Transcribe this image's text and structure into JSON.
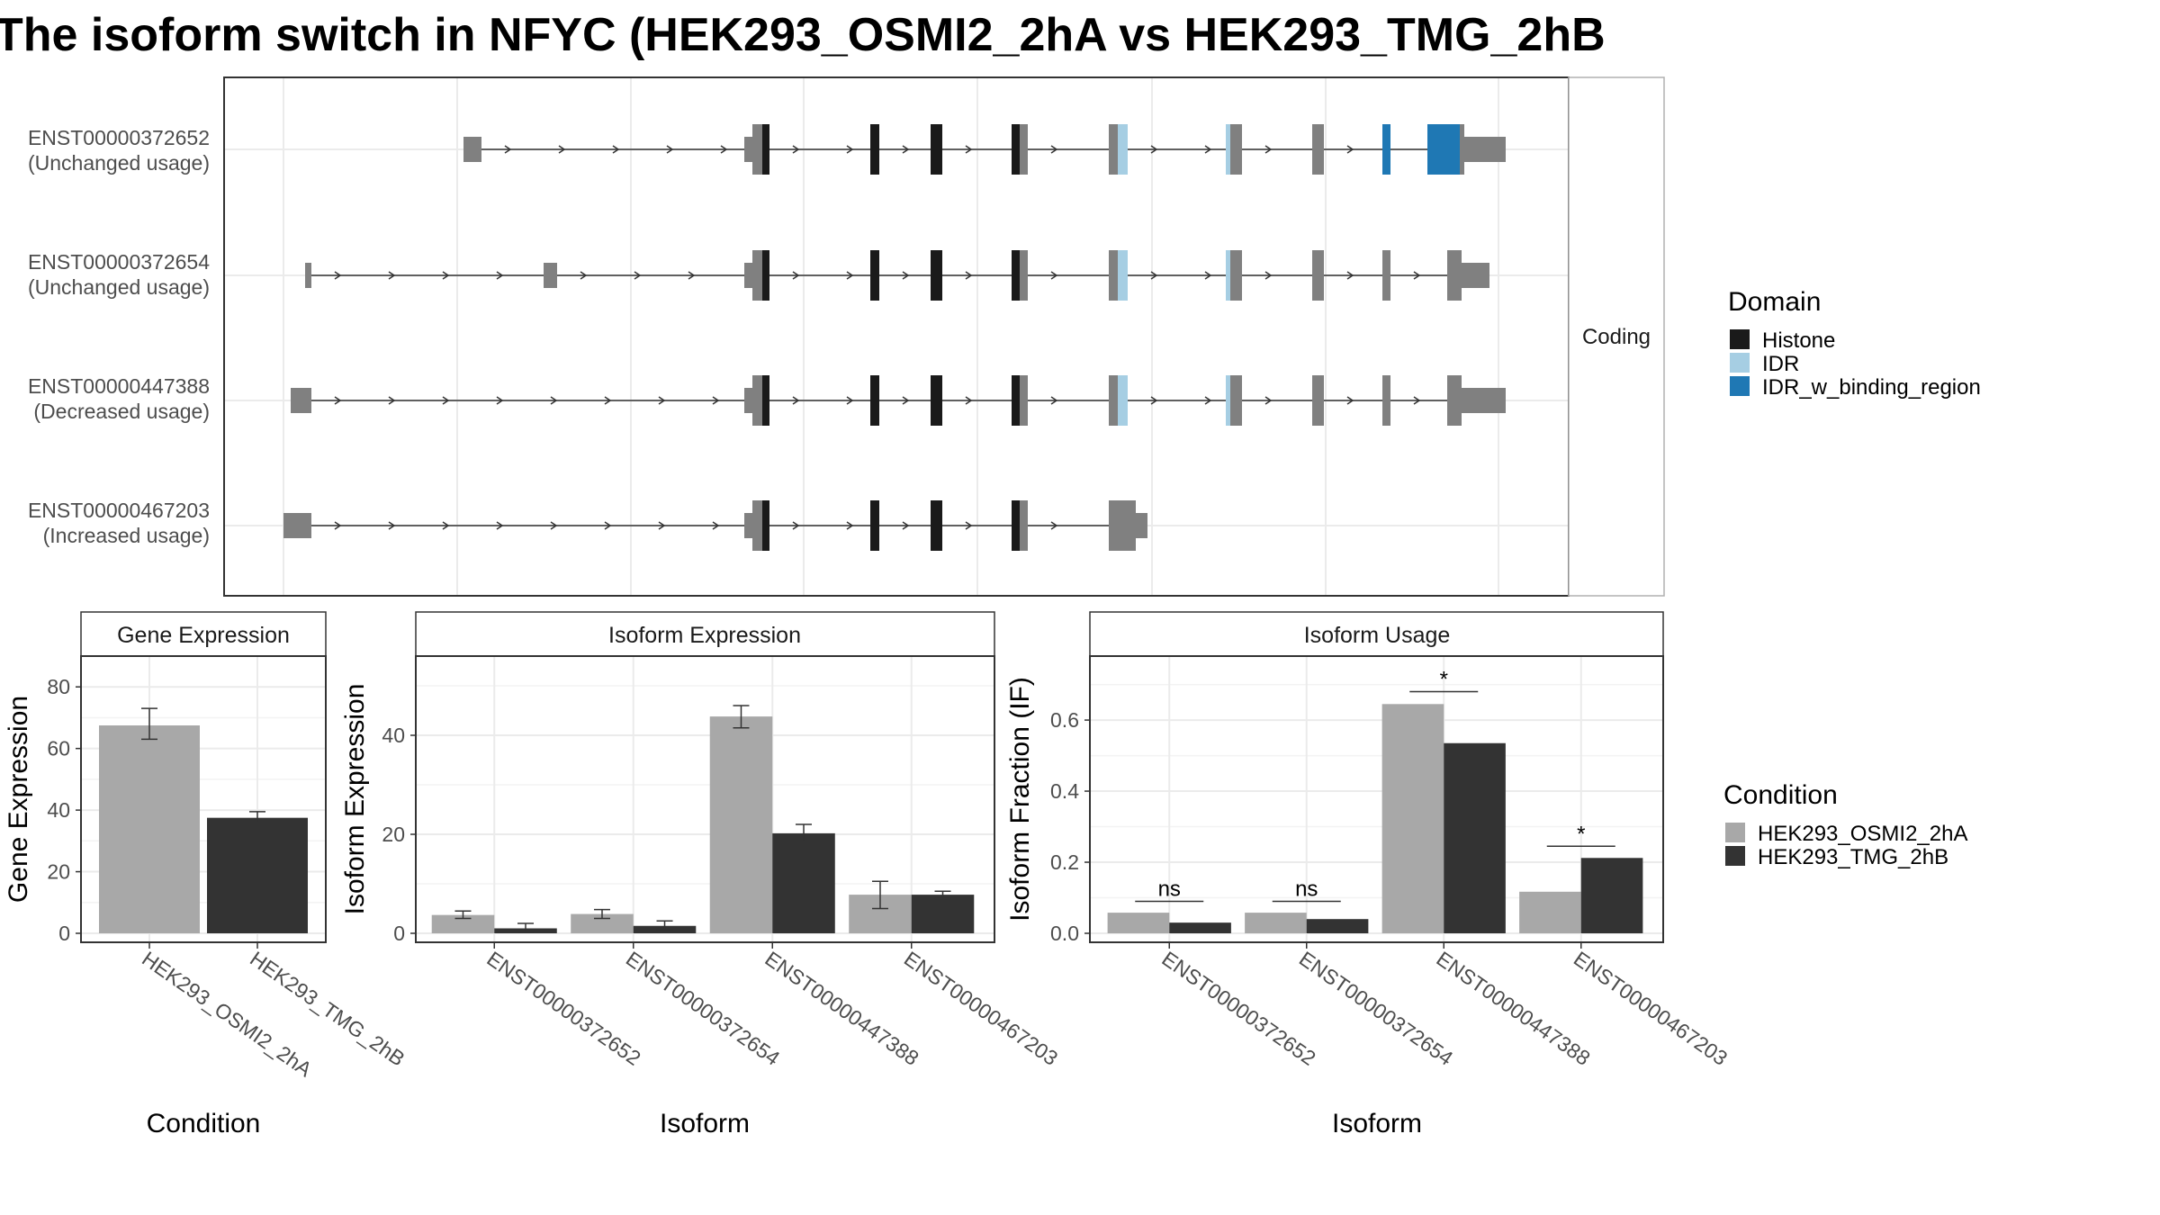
{
  "title": "The isoform switch in NFYC (HEK293_OSMI2_2hA vs HEK293_TMG_2hB",
  "structure": {
    "facet_label": "Coding",
    "isoforms": [
      {
        "id": "ENST00000372652",
        "usage": "(Unchanged usage)"
      },
      {
        "id": "ENST00000372654",
        "usage": "(Unchanged usage)"
      },
      {
        "id": "ENST00000447388",
        "usage": "(Decreased usage)"
      },
      {
        "id": "ENST00000467203",
        "usage": "(Increased usage)"
      }
    ]
  },
  "legends": {
    "domain": {
      "title": "Domain",
      "items": [
        {
          "label": "Histone",
          "color": "#1a1a1a"
        },
        {
          "label": "IDR",
          "color": "#a6cee3"
        },
        {
          "label": "IDR_w_binding_region",
          "color": "#1f78b4"
        }
      ]
    },
    "condition": {
      "title": "Condition",
      "items": [
        {
          "label": "HEK293_OSMI2_2hA",
          "color": "#a8a8a8"
        },
        {
          "label": "HEK293_TMG_2hB",
          "color": "#333333"
        }
      ]
    }
  },
  "chart_data": [
    {
      "type": "bar",
      "title": "Gene Expression",
      "xlabel": "Condition",
      "ylabel": "Gene Expression",
      "ylim": [
        0,
        90
      ],
      "yticks": [
        0,
        20,
        40,
        60,
        80
      ],
      "categories": [
        "HEK293_OSMI2_2hA",
        "HEK293_TMG_2hB"
      ],
      "values": [
        67.5,
        37.5
      ],
      "errors": [
        [
          63,
          73
        ],
        [
          36,
          39.5
        ]
      ]
    },
    {
      "type": "bar",
      "title": "Isoform Expression",
      "xlabel": "Isoform",
      "ylabel": "Isoform Expression",
      "ylim": [
        0,
        56
      ],
      "yticks": [
        0,
        20,
        40
      ],
      "categories": [
        "ENST00000372652",
        "ENST00000372654",
        "ENST00000447388",
        "ENST00000467203"
      ],
      "series": [
        {
          "name": "HEK293_OSMI2_2hA",
          "values": [
            3.7,
            3.9,
            43.8,
            7.8
          ],
          "errors": [
            [
              3.0,
              4.5
            ],
            [
              3.0,
              4.8
            ],
            [
              41.5,
              46.0
            ],
            [
              5.0,
              10.5
            ]
          ]
        },
        {
          "name": "HEK293_TMG_2hB",
          "values": [
            1.0,
            1.5,
            20.2,
            7.8
          ],
          "errors": [
            [
              0.3,
              2.0
            ],
            [
              0.7,
              2.5
            ],
            [
              18.5,
              22.0
            ],
            [
              7.0,
              8.5
            ]
          ]
        }
      ]
    },
    {
      "type": "bar",
      "title": "Isoform Usage",
      "xlabel": "Isoform",
      "ylabel": "Isoform Fraction (IF)",
      "ylim": [
        0,
        0.78
      ],
      "yticks": [
        0.0,
        0.2,
        0.4,
        0.6
      ],
      "categories": [
        "ENST00000372652",
        "ENST00000372654",
        "ENST00000447388",
        "ENST00000467203"
      ],
      "series": [
        {
          "name": "HEK293_OSMI2_2hA",
          "values": [
            0.058,
            0.058,
            0.645,
            0.117
          ]
        },
        {
          "name": "HEK293_TMG_2hB",
          "values": [
            0.03,
            0.04,
            0.535,
            0.212
          ]
        }
      ],
      "significance": [
        {
          "label": "ns",
          "y": 0.09
        },
        {
          "label": "ns",
          "y": 0.09
        },
        {
          "label": "*",
          "y": 0.68
        },
        {
          "label": "*",
          "y": 0.245
        }
      ]
    }
  ]
}
